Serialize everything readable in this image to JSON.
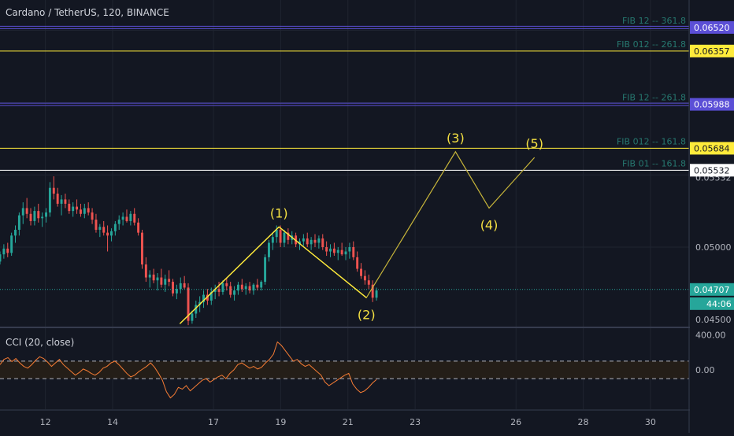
{
  "symbol": "Cardano / TetherUS, 120, BINANCE",
  "cci_label": "CCI (20, close)",
  "colors": {
    "background": "#131722",
    "grid": "#1f2430",
    "up": "#26a69a",
    "down": "#ef5350",
    "fib_yellow": "#ffeb3b",
    "fib_purple": "#5b4fd6",
    "fib_white": "#ffffff",
    "fib_text": "#26776f",
    "wave_line": "#c8b63a",
    "wave_text": "#f5e142",
    "cci_line": "#f57c34"
  },
  "chart_data": [
    {
      "type": "candlestick",
      "title": "Cardano / TetherUS, 120, BINANCE",
      "x_ticks": [
        "12",
        "14",
        "17",
        "19",
        "21",
        "23",
        "26",
        "28",
        "30"
      ],
      "y_ticks": [
        "0.05000",
        "0.04500"
      ],
      "ylim": [
        0.0445,
        0.0671
      ],
      "current_price": "0.04707",
      "countdown": "44:06",
      "partial_tick_label": "0.05532",
      "fib_levels": [
        {
          "label": "FIB 12 -- 361.8",
          "price": "0.06520",
          "color": "purple"
        },
        {
          "label": "FIB 012 -- 261.8",
          "price": "0.06357",
          "color": "yellow"
        },
        {
          "label": "FIB 12 -- 261.8",
          "price": "0.05988",
          "color": "purple"
        },
        {
          "label": "FIB 012 -- 161.8",
          "price": "0.05684",
          "color": "yellow"
        },
        {
          "label": "FIB 01 -- 161.8",
          "price": "0.05532",
          "color": "white"
        }
      ],
      "elliott_waves": [
        {
          "label": "",
          "x": 16.0,
          "y": 0.0447
        },
        {
          "label": "(1)",
          "x": 18.95,
          "y": 0.0514
        },
        {
          "label": "(2)",
          "x": 21.55,
          "y": 0.0465
        },
        {
          "label": "(3)",
          "x": 24.2,
          "y": 0.0566
        },
        {
          "label": "(4)",
          "x": 25.2,
          "y": 0.0527
        },
        {
          "label": "(5)",
          "x": 26.55,
          "y": 0.0562
        }
      ],
      "candles": [
        [
          0.049,
          0.0497,
          0.0488,
          0.0495
        ],
        [
          0.0495,
          0.0502,
          0.0492,
          0.0499
        ],
        [
          0.0499,
          0.0503,
          0.0493,
          0.0496
        ],
        [
          0.0496,
          0.051,
          0.0494,
          0.0508
        ],
        [
          0.0508,
          0.0515,
          0.0503,
          0.0512
        ],
        [
          0.0512,
          0.0524,
          0.0508,
          0.0522
        ],
        [
          0.0522,
          0.0531,
          0.0516,
          0.0527
        ],
        [
          0.0527,
          0.0534,
          0.052,
          0.0523
        ],
        [
          0.0523,
          0.0527,
          0.0515,
          0.0518
        ],
        [
          0.0518,
          0.0528,
          0.0515,
          0.0525
        ],
        [
          0.0525,
          0.053,
          0.0517,
          0.052
        ],
        [
          0.052,
          0.0524,
          0.0514,
          0.0521
        ],
        [
          0.0521,
          0.0527,
          0.0517,
          0.0524
        ],
        [
          0.0524,
          0.0545,
          0.0521,
          0.0541
        ],
        [
          0.0541,
          0.0549,
          0.0533,
          0.0537
        ],
        [
          0.0537,
          0.0541,
          0.0528,
          0.053
        ],
        [
          0.053,
          0.0536,
          0.0522,
          0.0533
        ],
        [
          0.0533,
          0.0537,
          0.0527,
          0.053
        ],
        [
          0.053,
          0.0533,
          0.0523,
          0.0525
        ],
        [
          0.0525,
          0.0531,
          0.0521,
          0.0528
        ],
        [
          0.0528,
          0.0533,
          0.0523,
          0.0526
        ],
        [
          0.0526,
          0.053,
          0.0521,
          0.0523
        ],
        [
          0.0523,
          0.053,
          0.052,
          0.0527
        ],
        [
          0.0527,
          0.0531,
          0.0522,
          0.0524
        ],
        [
          0.0524,
          0.0527,
          0.0516,
          0.0519
        ],
        [
          0.0519,
          0.0523,
          0.051,
          0.0512
        ],
        [
          0.0512,
          0.0516,
          0.0507,
          0.0514
        ],
        [
          0.0514,
          0.0518,
          0.0508,
          0.051
        ],
        [
          0.051,
          0.0515,
          0.0497,
          0.0508
        ],
        [
          0.0508,
          0.0513,
          0.0504,
          0.0511
        ],
        [
          0.0511,
          0.0518,
          0.0508,
          0.0516
        ],
        [
          0.0516,
          0.0522,
          0.0512,
          0.0519
        ],
        [
          0.0519,
          0.0524,
          0.0515,
          0.0521
        ],
        [
          0.0521,
          0.0526,
          0.0517,
          0.0518
        ],
        [
          0.0518,
          0.0525,
          0.0515,
          0.0523
        ],
        [
          0.0523,
          0.0527,
          0.0515,
          0.0517
        ],
        [
          0.0517,
          0.052,
          0.0508,
          0.051
        ],
        [
          0.051,
          0.0512,
          0.0485,
          0.0488
        ],
        [
          0.0488,
          0.0493,
          0.0476,
          0.0479
        ],
        [
          0.0479,
          0.0484,
          0.0472,
          0.0481
        ],
        [
          0.0481,
          0.0485,
          0.0475,
          0.0477
        ],
        [
          0.0477,
          0.0482,
          0.047,
          0.0479
        ],
        [
          0.0479,
          0.0485,
          0.0472,
          0.0474
        ],
        [
          0.0474,
          0.0481,
          0.0469,
          0.0478
        ],
        [
          0.0478,
          0.0484,
          0.0473,
          0.0476
        ],
        [
          0.0476,
          0.0478,
          0.0466,
          0.0468
        ],
        [
          0.0468,
          0.0474,
          0.0464,
          0.0471
        ],
        [
          0.0471,
          0.0479,
          0.0468,
          0.0475
        ],
        [
          0.0475,
          0.048,
          0.0471,
          0.0472
        ],
        [
          0.0472,
          0.0475,
          0.0446,
          0.0449
        ],
        [
          0.0449,
          0.0456,
          0.0447,
          0.0454
        ],
        [
          0.0454,
          0.0463,
          0.0451,
          0.046
        ],
        [
          0.046,
          0.0466,
          0.0455,
          0.0462
        ],
        [
          0.0462,
          0.047,
          0.0458,
          0.0467
        ],
        [
          0.0467,
          0.0471,
          0.046,
          0.0463
        ],
        [
          0.0463,
          0.0472,
          0.046,
          0.0469
        ],
        [
          0.0469,
          0.0474,
          0.0464,
          0.0471
        ],
        [
          0.0471,
          0.0476,
          0.0466,
          0.0469
        ],
        [
          0.0469,
          0.0477,
          0.0467,
          0.0475
        ],
        [
          0.0475,
          0.0479,
          0.047,
          0.0473
        ],
        [
          0.0473,
          0.0476,
          0.0465,
          0.0467
        ],
        [
          0.0467,
          0.0473,
          0.0463,
          0.047
        ],
        [
          0.047,
          0.0476,
          0.0467,
          0.0474
        ],
        [
          0.0474,
          0.0478,
          0.0469,
          0.0471
        ],
        [
          0.0471,
          0.0475,
          0.0467,
          0.0473
        ],
        [
          0.0473,
          0.0476,
          0.0468,
          0.047
        ],
        [
          0.047,
          0.0475,
          0.0467,
          0.0474
        ],
        [
          0.0474,
          0.0478,
          0.047,
          0.0472
        ],
        [
          0.0472,
          0.0477,
          0.047,
          0.0476
        ],
        [
          0.0476,
          0.0495,
          0.0474,
          0.0493
        ],
        [
          0.0493,
          0.0505,
          0.049,
          0.0503
        ],
        [
          0.0503,
          0.051,
          0.0498,
          0.0507
        ],
        [
          0.0507,
          0.0515,
          0.0503,
          0.0512
        ],
        [
          0.0512,
          0.0515,
          0.05,
          0.0503
        ],
        [
          0.0503,
          0.0512,
          0.05,
          0.051
        ],
        [
          0.051,
          0.0513,
          0.0502,
          0.0505
        ],
        [
          0.0505,
          0.0511,
          0.0502,
          0.0508
        ],
        [
          0.0508,
          0.051,
          0.05,
          0.0502
        ],
        [
          0.0502,
          0.0506,
          0.0498,
          0.0504
        ],
        [
          0.0504,
          0.0509,
          0.0501,
          0.0506
        ],
        [
          0.0506,
          0.051,
          0.05,
          0.0502
        ],
        [
          0.0502,
          0.0507,
          0.0498,
          0.0505
        ],
        [
          0.0505,
          0.0509,
          0.05,
          0.0503
        ],
        [
          0.0503,
          0.0508,
          0.0499,
          0.0506
        ],
        [
          0.0506,
          0.0509,
          0.0498,
          0.05
        ],
        [
          0.05,
          0.0504,
          0.0494,
          0.0497
        ],
        [
          0.0497,
          0.0502,
          0.0493,
          0.0499
        ],
        [
          0.0499,
          0.0503,
          0.0494,
          0.0496
        ],
        [
          0.0496,
          0.05,
          0.0491,
          0.0498
        ],
        [
          0.0498,
          0.0503,
          0.0494,
          0.0495
        ],
        [
          0.0495,
          0.05,
          0.0491,
          0.0497
        ],
        [
          0.0497,
          0.0503,
          0.0492,
          0.05
        ],
        [
          0.05,
          0.0504,
          0.0491,
          0.0493
        ],
        [
          0.0493,
          0.0497,
          0.0483,
          0.0485
        ],
        [
          0.0485,
          0.0489,
          0.0478,
          0.048
        ],
        [
          0.048,
          0.0484,
          0.0474,
          0.0477
        ],
        [
          0.0477,
          0.0481,
          0.0471,
          0.0474
        ],
        [
          0.0474,
          0.0477,
          0.0462,
          0.0465
        ],
        [
          0.0465,
          0.0472,
          0.0463,
          0.047
        ]
      ]
    },
    {
      "type": "line",
      "title": "CCI (20, close)",
      "y_ticks": [
        "400.00",
        "0.00"
      ],
      "ylim": [
        -450,
        450
      ],
      "band_levels": [
        100,
        -100
      ],
      "values": [
        60,
        120,
        140,
        95,
        130,
        80,
        40,
        20,
        60,
        110,
        150,
        130,
        90,
        40,
        80,
        120,
        60,
        20,
        -20,
        -60,
        -30,
        10,
        -10,
        -40,
        -60,
        -30,
        20,
        40,
        80,
        100,
        60,
        10,
        -40,
        -80,
        -60,
        -20,
        10,
        40,
        80,
        30,
        -40,
        -120,
        -250,
        -320,
        -280,
        -200,
        -220,
        -180,
        -240,
        -200,
        -160,
        -120,
        -100,
        -140,
        -110,
        -80,
        -60,
        -100,
        -40,
        0,
        60,
        80,
        50,
        20,
        40,
        10,
        30,
        80,
        120,
        180,
        320,
        280,
        220,
        160,
        100,
        120,
        70,
        40,
        60,
        20,
        -20,
        -60,
        -140,
        -180,
        -150,
        -120,
        -90,
        -60,
        -40,
        -160,
        -220,
        -260,
        -240,
        -200,
        -150,
        -110
      ]
    }
  ]
}
